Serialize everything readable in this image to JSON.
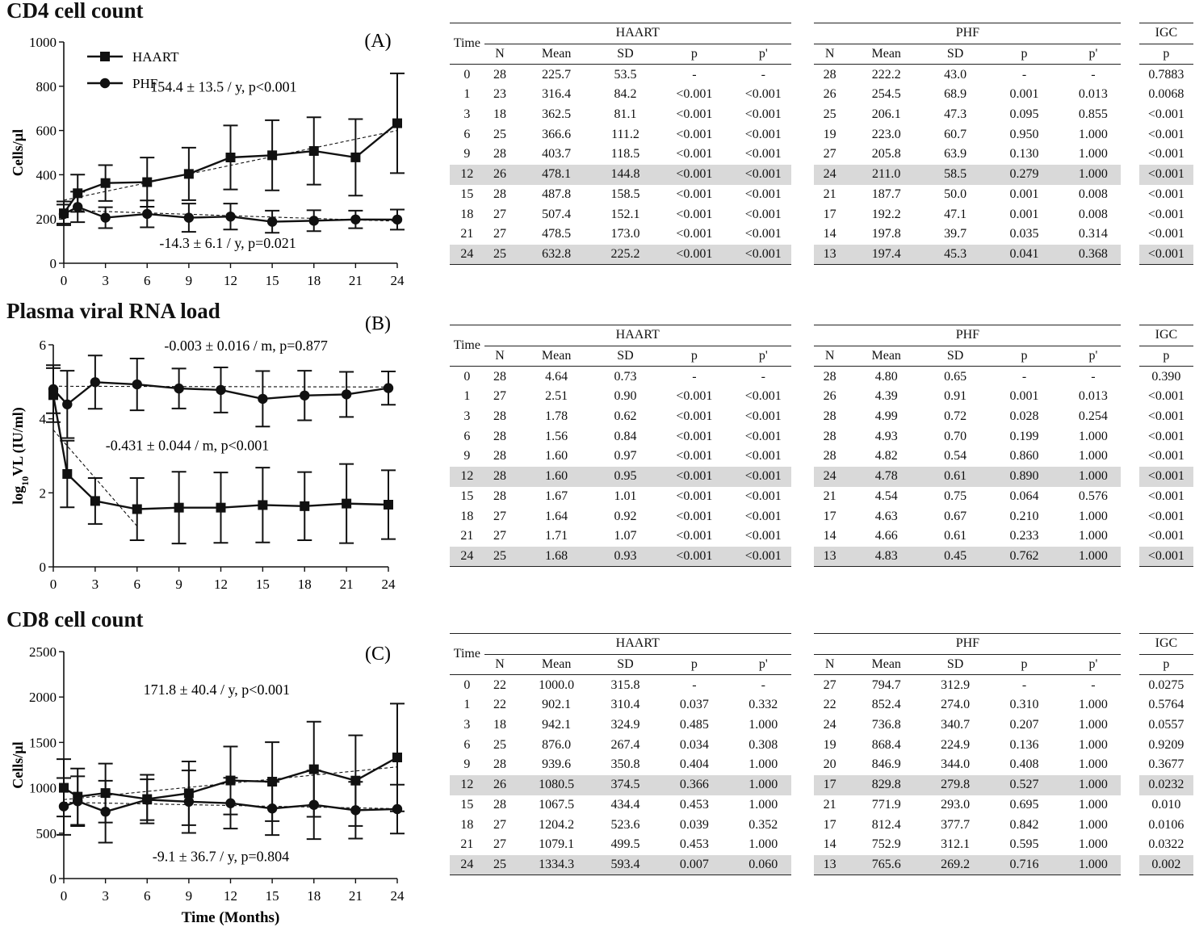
{
  "panels": [
    {
      "title": "CD4 cell count",
      "label": "(A)",
      "ylabel": "Cells/µl",
      "xlabel": "",
      "table": {
        "group_headers": [
          "HAART",
          "PHF",
          "IGC"
        ],
        "time_header": "Time",
        "col_headers": [
          "N",
          "Mean",
          "SD",
          "p",
          "p'",
          "N",
          "Mean",
          "SD",
          "p",
          "p'",
          "p"
        ],
        "highlight_times": [
          "12",
          "24"
        ],
        "rows": [
          [
            "0",
            "28",
            "225.7",
            "53.5",
            "-",
            "-",
            "28",
            "222.2",
            "43.0",
            "-",
            "-",
            "0.7883"
          ],
          [
            "1",
            "23",
            "316.4",
            "84.2",
            "<0.001",
            "<0.001",
            "26",
            "254.5",
            "68.9",
            "0.001",
            "0.013",
            "0.0068"
          ],
          [
            "3",
            "18",
            "362.5",
            "81.1",
            "<0.001",
            "<0.001",
            "25",
            "206.1",
            "47.3",
            "0.095",
            "0.855",
            "<0.001"
          ],
          [
            "6",
            "25",
            "366.6",
            "111.2",
            "<0.001",
            "<0.001",
            "19",
            "223.0",
            "60.7",
            "0.950",
            "1.000",
            "<0.001"
          ],
          [
            "9",
            "28",
            "403.7",
            "118.5",
            "<0.001",
            "<0.001",
            "27",
            "205.8",
            "63.9",
            "0.130",
            "1.000",
            "<0.001"
          ],
          [
            "12",
            "26",
            "478.1",
            "144.8",
            "<0.001",
            "<0.001",
            "24",
            "211.0",
            "58.5",
            "0.279",
            "1.000",
            "<0.001"
          ],
          [
            "15",
            "28",
            "487.8",
            "158.5",
            "<0.001",
            "<0.001",
            "21",
            "187.7",
            "50.0",
            "0.001",
            "0.008",
            "<0.001"
          ],
          [
            "18",
            "27",
            "507.4",
            "152.1",
            "<0.001",
            "<0.001",
            "17",
            "192.2",
            "47.1",
            "0.001",
            "0.008",
            "<0.001"
          ],
          [
            "21",
            "27",
            "478.5",
            "173.0",
            "<0.001",
            "<0.001",
            "14",
            "197.8",
            "39.7",
            "0.035",
            "0.314",
            "<0.001"
          ],
          [
            "24",
            "25",
            "632.8",
            "225.2",
            "<0.001",
            "<0.001",
            "13",
            "197.4",
            "45.3",
            "0.041",
            "0.368",
            "<0.001"
          ]
        ]
      }
    },
    {
      "title": "Plasma viral RNA load",
      "label": "(B)",
      "ylabel": "log10VL (IU/ml)",
      "xlabel": "",
      "table": {
        "group_headers": [
          "HAART",
          "PHF",
          "IGC"
        ],
        "time_header": "Time",
        "col_headers": [
          "N",
          "Mean",
          "SD",
          "p",
          "p'",
          "N",
          "Mean",
          "SD",
          "p",
          "p'",
          "p"
        ],
        "highlight_times": [
          "12",
          "24"
        ],
        "rows": [
          [
            "0",
            "28",
            "4.64",
            "0.73",
            "-",
            "-",
            "28",
            "4.80",
            "0.65",
            "-",
            "-",
            "0.390"
          ],
          [
            "1",
            "27",
            "2.51",
            "0.90",
            "<0.001",
            "<0.001",
            "26",
            "4.39",
            "0.91",
            "0.001",
            "0.013",
            "<0.001"
          ],
          [
            "3",
            "28",
            "1.78",
            "0.62",
            "<0.001",
            "<0.001",
            "28",
            "4.99",
            "0.72",
            "0.028",
            "0.254",
            "<0.001"
          ],
          [
            "6",
            "28",
            "1.56",
            "0.84",
            "<0.001",
            "<0.001",
            "28",
            "4.93",
            "0.70",
            "0.199",
            "1.000",
            "<0.001"
          ],
          [
            "9",
            "28",
            "1.60",
            "0.97",
            "<0.001",
            "<0.001",
            "28",
            "4.82",
            "0.54",
            "0.860",
            "1.000",
            "<0.001"
          ],
          [
            "12",
            "28",
            "1.60",
            "0.95",
            "<0.001",
            "<0.001",
            "24",
            "4.78",
            "0.61",
            "0.890",
            "1.000",
            "<0.001"
          ],
          [
            "15",
            "28",
            "1.67",
            "1.01",
            "<0.001",
            "<0.001",
            "21",
            "4.54",
            "0.75",
            "0.064",
            "0.576",
            "<0.001"
          ],
          [
            "18",
            "27",
            "1.64",
            "0.92",
            "<0.001",
            "<0.001",
            "17",
            "4.63",
            "0.67",
            "0.210",
            "1.000",
            "<0.001"
          ],
          [
            "21",
            "27",
            "1.71",
            "1.07",
            "<0.001",
            "<0.001",
            "14",
            "4.66",
            "0.61",
            "0.233",
            "1.000",
            "<0.001"
          ],
          [
            "24",
            "25",
            "1.68",
            "0.93",
            "<0.001",
            "<0.001",
            "13",
            "4.83",
            "0.45",
            "0.762",
            "1.000",
            "<0.001"
          ]
        ]
      }
    },
    {
      "title": "CD8 cell count",
      "label": "(C)",
      "ylabel": "Cells/µl",
      "xlabel": "Time (Months)",
      "table": {
        "group_headers": [
          "HAART",
          "PHF",
          "IGC"
        ],
        "time_header": "Time",
        "col_headers": [
          "N",
          "Mean",
          "SD",
          "p",
          "p'",
          "N",
          "Mean",
          "SD",
          "p",
          "p'",
          "p"
        ],
        "highlight_times": [
          "12",
          "24"
        ],
        "rows": [
          [
            "0",
            "22",
            "1000.0",
            "315.8",
            "-",
            "-",
            "27",
            "794.7",
            "312.9",
            "-",
            "-",
            "0.0275"
          ],
          [
            "1",
            "22",
            "902.1",
            "310.4",
            "0.037",
            "0.332",
            "22",
            "852.4",
            "274.0",
            "0.310",
            "1.000",
            "0.5764"
          ],
          [
            "3",
            "18",
            "942.1",
            "324.9",
            "0.485",
            "1.000",
            "24",
            "736.8",
            "340.7",
            "0.207",
            "1.000",
            "0.0557"
          ],
          [
            "6",
            "25",
            "876.0",
            "267.4",
            "0.034",
            "0.308",
            "19",
            "868.4",
            "224.9",
            "0.136",
            "1.000",
            "0.9209"
          ],
          [
            "9",
            "28",
            "939.6",
            "350.8",
            "0.404",
            "1.000",
            "20",
            "846.9",
            "344.0",
            "0.408",
            "1.000",
            "0.3677"
          ],
          [
            "12",
            "26",
            "1080.5",
            "374.5",
            "0.366",
            "1.000",
            "17",
            "829.8",
            "279.8",
            "0.527",
            "1.000",
            "0.0232"
          ],
          [
            "15",
            "28",
            "1067.5",
            "434.4",
            "0.453",
            "1.000",
            "21",
            "771.9",
            "293.0",
            "0.695",
            "1.000",
            "0.010"
          ],
          [
            "18",
            "27",
            "1204.2",
            "523.6",
            "0.039",
            "0.352",
            "17",
            "812.4",
            "377.7",
            "0.842",
            "1.000",
            "0.0106"
          ],
          [
            "21",
            "27",
            "1079.1",
            "499.5",
            "0.453",
            "1.000",
            "14",
            "752.9",
            "312.1",
            "0.595",
            "1.000",
            "0.0322"
          ],
          [
            "24",
            "25",
            "1334.3",
            "593.4",
            "0.007",
            "0.060",
            "13",
            "765.6",
            "269.2",
            "0.716",
            "1.000",
            "0.002"
          ]
        ]
      }
    }
  ],
  "chart_data": [
    {
      "type": "line",
      "title": "CD4 cell count",
      "ylabel": "Cells/µl",
      "xlabel": "",
      "x": [
        0,
        1,
        3,
        6,
        9,
        12,
        15,
        18,
        21,
        24
      ],
      "xticks": [
        0,
        3,
        6,
        9,
        12,
        15,
        18,
        21,
        24
      ],
      "xlim": [
        0,
        24
      ],
      "ylim": [
        0,
        1000
      ],
      "yticks": [
        0,
        200,
        400,
        600,
        800,
        1000
      ],
      "legend": {
        "placement": "top-left",
        "entries": [
          "HAART",
          "PHF"
        ]
      },
      "series": [
        {
          "name": "HAART",
          "marker": "square",
          "values": [
            225.7,
            316.4,
            362.5,
            366.6,
            403.7,
            478.1,
            487.8,
            507.4,
            478.5,
            632.8
          ],
          "sd": [
            53.5,
            84.2,
            81.1,
            111.2,
            118.5,
            144.8,
            158.5,
            152.1,
            173.0,
            225.2
          ]
        },
        {
          "name": "PHF",
          "marker": "circle",
          "values": [
            222.2,
            254.5,
            206.1,
            223.0,
            205.8,
            211.0,
            187.7,
            192.2,
            197.8,
            197.4
          ],
          "sd": [
            43.0,
            68.9,
            47.3,
            60.7,
            63.9,
            58.5,
            50.0,
            47.1,
            39.7,
            45.3
          ]
        }
      ],
      "trendlines": [
        {
          "from": [
            0,
            285
          ],
          "to": [
            24,
            600
          ]
        },
        {
          "from": [
            0,
            240
          ],
          "to": [
            24,
            190
          ]
        }
      ],
      "annotations": [
        {
          "text": "154.4 ± 13.5 / y, p<0.001",
          "x": 11.5,
          "y": 775
        },
        {
          "text": "-14.3 ± 6.1 / y, p=0.021",
          "x": 11.8,
          "y": 70
        }
      ]
    },
    {
      "type": "line",
      "title": "Plasma viral RNA load",
      "ylabel": "log10VL (IU/ml)",
      "xlabel": "",
      "x": [
        0,
        1,
        3,
        6,
        9,
        12,
        15,
        18,
        21,
        24
      ],
      "xticks": [
        0,
        3,
        6,
        9,
        12,
        15,
        18,
        21,
        24
      ],
      "xlim": [
        0,
        24
      ],
      "ylim": [
        0,
        6
      ],
      "yticks": [
        0,
        2,
        4,
        6
      ],
      "series": [
        {
          "name": "HAART",
          "marker": "square",
          "values": [
            4.64,
            2.51,
            1.78,
            1.56,
            1.6,
            1.6,
            1.67,
            1.64,
            1.71,
            1.68
          ],
          "sd": [
            0.73,
            0.9,
            0.62,
            0.84,
            0.97,
            0.95,
            1.01,
            0.92,
            1.07,
            0.93
          ]
        },
        {
          "name": "PHF",
          "marker": "circle",
          "values": [
            4.8,
            4.39,
            4.99,
            4.93,
            4.82,
            4.78,
            4.54,
            4.63,
            4.66,
            4.83
          ],
          "sd": [
            0.65,
            0.91,
            0.72,
            0.7,
            0.54,
            0.61,
            0.75,
            0.67,
            0.61,
            0.45
          ]
        }
      ],
      "trendlines": [
        {
          "from": [
            0,
            4.88
          ],
          "to": [
            24,
            4.86
          ]
        },
        {
          "from": [
            0,
            3.7
          ],
          "to": [
            6,
            1.1
          ]
        }
      ],
      "annotations": [
        {
          "text": "-0.003 ± 0.016 / m, p=0.877",
          "x": 13.8,
          "y": 5.85
        },
        {
          "text": "-0.431 ± 0.044 / m, p<0.001",
          "x": 9.6,
          "y": 3.15
        }
      ]
    },
    {
      "type": "line",
      "title": "CD8 cell count",
      "ylabel": "Cells/µl",
      "xlabel": "Time (Months)",
      "x": [
        0,
        1,
        3,
        6,
        9,
        12,
        15,
        18,
        21,
        24
      ],
      "xticks": [
        0,
        3,
        6,
        9,
        12,
        15,
        18,
        21,
        24
      ],
      "xlim": [
        0,
        24
      ],
      "ylim": [
        0,
        2500
      ],
      "yticks": [
        0,
        500,
        1000,
        1500,
        2000,
        2500
      ],
      "series": [
        {
          "name": "HAART",
          "marker": "square",
          "values": [
            1000.0,
            902.1,
            942.1,
            876.0,
            939.6,
            1080.5,
            1067.5,
            1204.2,
            1079.1,
            1334.3
          ],
          "sd": [
            315.8,
            310.4,
            324.9,
            267.4,
            350.8,
            374.5,
            434.4,
            523.6,
            499.5,
            593.4
          ]
        },
        {
          "name": "PHF",
          "marker": "circle",
          "values": [
            794.7,
            852.4,
            736.8,
            868.4,
            846.9,
            829.8,
            771.9,
            812.4,
            752.9,
            765.6
          ],
          "sd": [
            312.9,
            274.0,
            340.7,
            224.9,
            344.0,
            279.8,
            293.0,
            377.7,
            312.1,
            269.2
          ]
        }
      ],
      "trendlines": [
        {
          "from": [
            0,
            870
          ],
          "to": [
            24,
            1230
          ]
        },
        {
          "from": [
            0,
            840
          ],
          "to": [
            24,
            770
          ]
        }
      ],
      "annotations": [
        {
          "text": "171.8 ± 40.4 / y, p<0.001",
          "x": 11.0,
          "y": 2030
        },
        {
          "text": "-9.1 ± 36.7 / y, p=0.804",
          "x": 11.3,
          "y": 190
        }
      ]
    }
  ],
  "colors": {
    "ink": "#111111",
    "highlight_row": "#d9d9d9"
  }
}
